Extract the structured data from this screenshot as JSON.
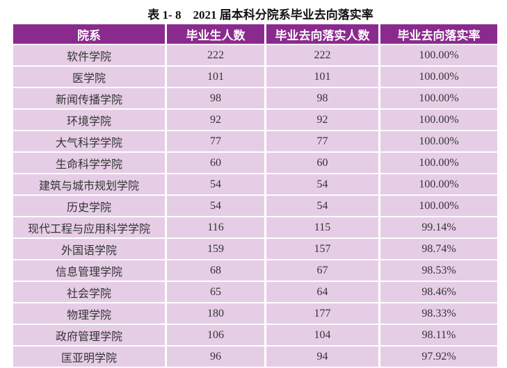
{
  "title": "表 1- 8　2021 届本科分院系毕业去向落实率",
  "headers": [
    "院系",
    "毕业生人数",
    "毕业去向落实人数",
    "毕业去向落实率"
  ],
  "rows": [
    [
      "软件学院",
      "222",
      "222",
      "100.00%"
    ],
    [
      "医学院",
      "101",
      "101",
      "100.00%"
    ],
    [
      "新闻传播学院",
      "98",
      "98",
      "100.00%"
    ],
    [
      "环境学院",
      "92",
      "92",
      "100.00%"
    ],
    [
      "大气科学学院",
      "77",
      "77",
      "100.00%"
    ],
    [
      "生命科学学院",
      "60",
      "60",
      "100.00%"
    ],
    [
      "建筑与城市规划学院",
      "54",
      "54",
      "100.00%"
    ],
    [
      "历史学院",
      "54",
      "54",
      "100.00%"
    ],
    [
      "现代工程与应用科学学院",
      "116",
      "115",
      "99.14%"
    ],
    [
      "外国语学院",
      "159",
      "157",
      "98.74%"
    ],
    [
      "信息管理学院",
      "68",
      "67",
      "98.53%"
    ],
    [
      "社会学院",
      "65",
      "64",
      "98.46%"
    ],
    [
      "物理学院",
      "180",
      "177",
      "98.33%"
    ],
    [
      "政府管理学院",
      "106",
      "104",
      "98.11%"
    ],
    [
      "匡亚明学院",
      "96",
      "94",
      "97.92%"
    ]
  ],
  "colors": {
    "header": "#8B2A8E",
    "cell": "#E6CDE6"
  }
}
